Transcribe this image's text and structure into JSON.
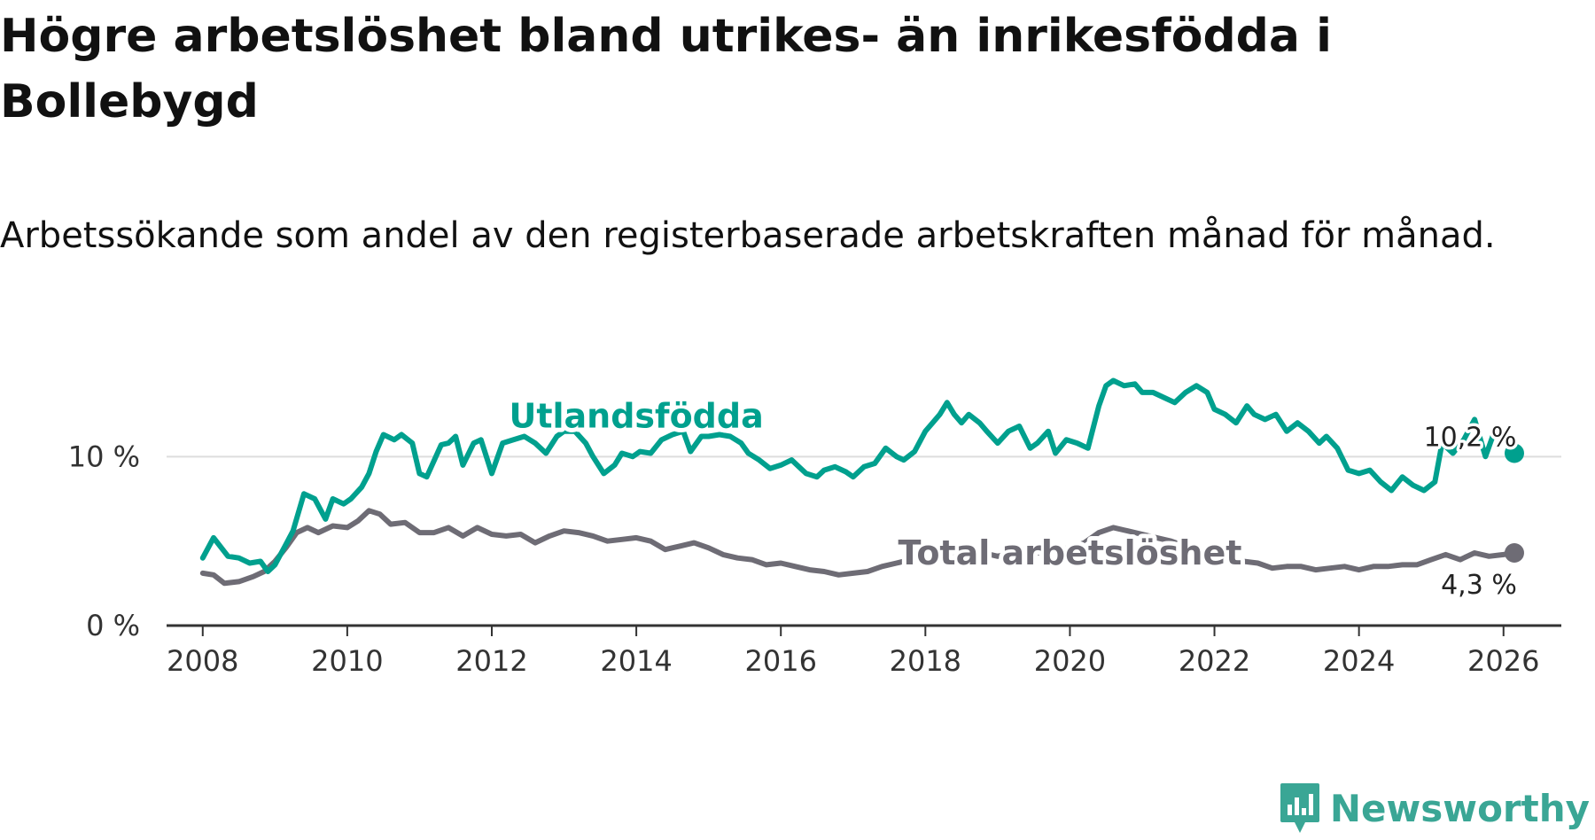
{
  "title": "Högre arbetslöshet bland utrikes- än inrikesfödda i Bollebygd",
  "subtitle": "Arbetssökande som andel av den registerbaserade arbetskraften månad för månad.",
  "brand": {
    "name": "Newsworthy",
    "icon": "newsworthy-logo-icon",
    "color": "#3aa695"
  },
  "colors": {
    "foreign": "#00a08e",
    "total": "#6e6c75",
    "grid": "#dddddd",
    "axis": "#333333"
  },
  "chart_data": {
    "type": "line",
    "title": "Högre arbetslöshet bland utrikes- än inrikesfödda i Bollebygd",
    "xlabel": "",
    "ylabel": "",
    "xlim": [
      2007.5,
      2026.8
    ],
    "ylim": [
      0,
      15
    ],
    "x_ticks": [
      2008,
      2010,
      2012,
      2014,
      2016,
      2018,
      2020,
      2022,
      2024,
      2026
    ],
    "x_tick_labels": [
      "2008",
      "2010",
      "2012",
      "2014",
      "2016",
      "2018",
      "2020",
      "2022",
      "2024",
      "2026"
    ],
    "y_ticks": [
      0,
      10
    ],
    "y_tick_labels": [
      "0 %",
      "10 %"
    ],
    "grid": true,
    "series": [
      {
        "name": "Utlandsfödda",
        "color": "#00a08e",
        "end_label": "10,2 %",
        "points": [
          [
            2008.0,
            4.0
          ],
          [
            2008.15,
            5.2
          ],
          [
            2008.35,
            4.1
          ],
          [
            2008.5,
            4.0
          ],
          [
            2008.65,
            3.7
          ],
          [
            2008.8,
            3.8
          ],
          [
            2008.9,
            3.2
          ],
          [
            2009.0,
            3.6
          ],
          [
            2009.15,
            4.8
          ],
          [
            2009.25,
            5.6
          ],
          [
            2009.4,
            7.8
          ],
          [
            2009.55,
            7.5
          ],
          [
            2009.7,
            6.3
          ],
          [
            2009.8,
            7.5
          ],
          [
            2009.95,
            7.2
          ],
          [
            2010.05,
            7.5
          ],
          [
            2010.2,
            8.2
          ],
          [
            2010.3,
            9.0
          ],
          [
            2010.4,
            10.3
          ],
          [
            2010.5,
            11.3
          ],
          [
            2010.65,
            11.0
          ],
          [
            2010.75,
            11.3
          ],
          [
            2010.9,
            10.8
          ],
          [
            2011.0,
            9.0
          ],
          [
            2011.1,
            8.8
          ],
          [
            2011.3,
            10.7
          ],
          [
            2011.4,
            10.8
          ],
          [
            2011.5,
            11.2
          ],
          [
            2011.6,
            9.5
          ],
          [
            2011.75,
            10.8
          ],
          [
            2011.85,
            11.0
          ],
          [
            2012.0,
            9.0
          ],
          [
            2012.15,
            10.8
          ],
          [
            2012.3,
            11.0
          ],
          [
            2012.45,
            11.2
          ],
          [
            2012.6,
            10.8
          ],
          [
            2012.75,
            10.2
          ],
          [
            2012.9,
            11.2
          ],
          [
            2013.0,
            11.5
          ],
          [
            2013.15,
            11.5
          ],
          [
            2013.3,
            10.8
          ],
          [
            2013.4,
            10.0
          ],
          [
            2013.55,
            9.0
          ],
          [
            2013.7,
            9.5
          ],
          [
            2013.8,
            10.2
          ],
          [
            2013.95,
            10.0
          ],
          [
            2014.05,
            10.3
          ],
          [
            2014.2,
            10.2
          ],
          [
            2014.35,
            11.0
          ],
          [
            2014.5,
            11.3
          ],
          [
            2014.65,
            11.5
          ],
          [
            2014.75,
            10.3
          ],
          [
            2014.9,
            11.2
          ],
          [
            2015.0,
            11.2
          ],
          [
            2015.15,
            11.3
          ],
          [
            2015.3,
            11.2
          ],
          [
            2015.45,
            10.8
          ],
          [
            2015.55,
            10.2
          ],
          [
            2015.7,
            9.8
          ],
          [
            2015.85,
            9.3
          ],
          [
            2016.0,
            9.5
          ],
          [
            2016.15,
            9.8
          ],
          [
            2016.25,
            9.4
          ],
          [
            2016.35,
            9.0
          ],
          [
            2016.5,
            8.8
          ],
          [
            2016.6,
            9.2
          ],
          [
            2016.75,
            9.4
          ],
          [
            2016.9,
            9.1
          ],
          [
            2017.0,
            8.8
          ],
          [
            2017.15,
            9.4
          ],
          [
            2017.3,
            9.6
          ],
          [
            2017.45,
            10.5
          ],
          [
            2017.6,
            10.0
          ],
          [
            2017.7,
            9.8
          ],
          [
            2017.85,
            10.3
          ],
          [
            2018.0,
            11.5
          ],
          [
            2018.1,
            12.0
          ],
          [
            2018.2,
            12.5
          ],
          [
            2018.3,
            13.2
          ],
          [
            2018.4,
            12.5
          ],
          [
            2018.5,
            12.0
          ],
          [
            2018.6,
            12.5
          ],
          [
            2018.75,
            12.0
          ],
          [
            2018.85,
            11.5
          ],
          [
            2019.0,
            10.8
          ],
          [
            2019.15,
            11.5
          ],
          [
            2019.3,
            11.8
          ],
          [
            2019.45,
            10.5
          ],
          [
            2019.55,
            10.8
          ],
          [
            2019.7,
            11.5
          ],
          [
            2019.8,
            10.2
          ],
          [
            2019.95,
            11.0
          ],
          [
            2020.1,
            10.8
          ],
          [
            2020.25,
            10.5
          ],
          [
            2020.4,
            13.0
          ],
          [
            2020.5,
            14.2
          ],
          [
            2020.6,
            14.5
          ],
          [
            2020.75,
            14.2
          ],
          [
            2020.9,
            14.3
          ],
          [
            2021.0,
            13.8
          ],
          [
            2021.15,
            13.8
          ],
          [
            2021.3,
            13.5
          ],
          [
            2021.45,
            13.2
          ],
          [
            2021.6,
            13.8
          ],
          [
            2021.75,
            14.2
          ],
          [
            2021.9,
            13.8
          ],
          [
            2022.0,
            12.8
          ],
          [
            2022.15,
            12.5
          ],
          [
            2022.3,
            12.0
          ],
          [
            2022.45,
            13.0
          ],
          [
            2022.55,
            12.5
          ],
          [
            2022.7,
            12.2
          ],
          [
            2022.85,
            12.5
          ],
          [
            2023.0,
            11.5
          ],
          [
            2023.15,
            12.0
          ],
          [
            2023.3,
            11.5
          ],
          [
            2023.45,
            10.8
          ],
          [
            2023.55,
            11.2
          ],
          [
            2023.7,
            10.5
          ],
          [
            2023.85,
            9.2
          ],
          [
            2024.0,
            9.0
          ],
          [
            2024.15,
            9.2
          ],
          [
            2024.3,
            8.5
          ],
          [
            2024.45,
            8.0
          ],
          [
            2024.6,
            8.8
          ],
          [
            2024.75,
            8.3
          ],
          [
            2024.9,
            8.0
          ],
          [
            2025.05,
            8.5
          ],
          [
            2025.15,
            10.8
          ],
          [
            2025.3,
            10.2
          ],
          [
            2025.45,
            11.0
          ],
          [
            2025.6,
            12.2
          ],
          [
            2025.75,
            10.0
          ],
          [
            2025.85,
            11.2
          ],
          [
            2026.0,
            11.5
          ],
          [
            2026.15,
            10.2
          ]
        ]
      },
      {
        "name": "Total arbetslöshet",
        "color": "#6e6c75",
        "end_label": "4,3 %",
        "points": [
          [
            2008.0,
            3.1
          ],
          [
            2008.15,
            3.0
          ],
          [
            2008.3,
            2.5
          ],
          [
            2008.5,
            2.6
          ],
          [
            2008.7,
            2.9
          ],
          [
            2008.85,
            3.2
          ],
          [
            2009.0,
            3.8
          ],
          [
            2009.15,
            4.6
          ],
          [
            2009.3,
            5.5
          ],
          [
            2009.45,
            5.8
          ],
          [
            2009.6,
            5.5
          ],
          [
            2009.8,
            5.9
          ],
          [
            2010.0,
            5.8
          ],
          [
            2010.15,
            6.2
          ],
          [
            2010.3,
            6.8
          ],
          [
            2010.45,
            6.6
          ],
          [
            2010.6,
            6.0
          ],
          [
            2010.8,
            6.1
          ],
          [
            2011.0,
            5.5
          ],
          [
            2011.2,
            5.5
          ],
          [
            2011.4,
            5.8
          ],
          [
            2011.6,
            5.3
          ],
          [
            2011.8,
            5.8
          ],
          [
            2012.0,
            5.4
          ],
          [
            2012.2,
            5.3
          ],
          [
            2012.4,
            5.4
          ],
          [
            2012.6,
            4.9
          ],
          [
            2012.8,
            5.3
          ],
          [
            2013.0,
            5.6
          ],
          [
            2013.2,
            5.5
          ],
          [
            2013.4,
            5.3
          ],
          [
            2013.6,
            5.0
          ],
          [
            2013.8,
            5.1
          ],
          [
            2014.0,
            5.2
          ],
          [
            2014.2,
            5.0
          ],
          [
            2014.4,
            4.5
          ],
          [
            2014.6,
            4.7
          ],
          [
            2014.8,
            4.9
          ],
          [
            2015.0,
            4.6
          ],
          [
            2015.2,
            4.2
          ],
          [
            2015.4,
            4.0
          ],
          [
            2015.6,
            3.9
          ],
          [
            2015.8,
            3.6
          ],
          [
            2016.0,
            3.7
          ],
          [
            2016.2,
            3.5
          ],
          [
            2016.4,
            3.3
          ],
          [
            2016.6,
            3.2
          ],
          [
            2016.8,
            3.0
          ],
          [
            2017.0,
            3.1
          ],
          [
            2017.2,
            3.2
          ],
          [
            2017.4,
            3.5
          ],
          [
            2017.6,
            3.7
          ],
          [
            2017.8,
            3.9
          ],
          [
            2018.0,
            4.2
          ],
          [
            2018.2,
            4.5
          ],
          [
            2018.4,
            4.3
          ],
          [
            2018.6,
            4.1
          ],
          [
            2018.8,
            4.3
          ],
          [
            2019.0,
            4.1
          ],
          [
            2019.2,
            4.3
          ],
          [
            2019.4,
            4.4
          ],
          [
            2019.6,
            4.3
          ],
          [
            2019.8,
            4.5
          ],
          [
            2020.0,
            4.6
          ],
          [
            2020.2,
            4.9
          ],
          [
            2020.4,
            5.5
          ],
          [
            2020.6,
            5.8
          ],
          [
            2020.8,
            5.6
          ],
          [
            2021.0,
            5.4
          ],
          [
            2021.2,
            5.2
          ],
          [
            2021.4,
            5.0
          ],
          [
            2021.6,
            4.7
          ],
          [
            2021.8,
            4.3
          ],
          [
            2022.0,
            4.2
          ],
          [
            2022.2,
            4.0
          ],
          [
            2022.4,
            3.8
          ],
          [
            2022.6,
            3.7
          ],
          [
            2022.8,
            3.4
          ],
          [
            2023.0,
            3.5
          ],
          [
            2023.2,
            3.5
          ],
          [
            2023.4,
            3.3
          ],
          [
            2023.6,
            3.4
          ],
          [
            2023.8,
            3.5
          ],
          [
            2024.0,
            3.3
          ],
          [
            2024.2,
            3.5
          ],
          [
            2024.4,
            3.5
          ],
          [
            2024.6,
            3.6
          ],
          [
            2024.8,
            3.6
          ],
          [
            2025.0,
            3.9
          ],
          [
            2025.2,
            4.2
          ],
          [
            2025.4,
            3.9
          ],
          [
            2025.6,
            4.3
          ],
          [
            2025.8,
            4.1
          ],
          [
            2026.0,
            4.2
          ],
          [
            2026.15,
            4.3
          ]
        ]
      }
    ]
  }
}
